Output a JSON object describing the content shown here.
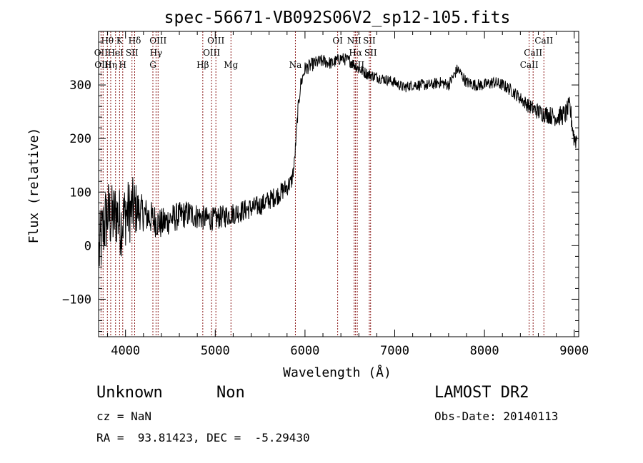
{
  "chart_data": {
    "type": "line",
    "title": "spec-56671-VB092S06V2_sp12-105.fits",
    "xlabel": "Wavelength (Å)",
    "ylabel": "Flux (relative)",
    "xlim": [
      3700,
      9050
    ],
    "ylim": [
      -170,
      400
    ],
    "xticks": [
      "4000",
      "5000",
      "6000",
      "7000",
      "8000",
      "9000"
    ],
    "yticks": [
      "−100",
      "0",
      "100",
      "200",
      "300"
    ],
    "grid": false,
    "line_color": "#000000",
    "marker_color": "#8b1a1a",
    "lines": [
      {
        "label": "Hθ",
        "x": 3798,
        "row": 1
      },
      {
        "label": "K",
        "x": 3934,
        "row": 1
      },
      {
        "label": "Hδ",
        "x": 4102,
        "row": 1
      },
      {
        "label": "OIII",
        "x": 4363,
        "row": 1
      },
      {
        "label": "OIII",
        "x": 5007,
        "row": 1
      },
      {
        "label": "OI",
        "x": 6364,
        "row": 1
      },
      {
        "label": "NII",
        "x": 6548,
        "row": 1
      },
      {
        "label": "SII",
        "x": 6717,
        "row": 1
      },
      {
        "label": "CaII",
        "x": 8662,
        "row": 1
      },
      {
        "label": "OII",
        "x": 3727,
        "row": 2
      },
      {
        "label": "HeI",
        "x": 3889,
        "row": 2
      },
      {
        "label": "SII",
        "x": 4072,
        "row": 2
      },
      {
        "label": "Hγ",
        "x": 4340,
        "row": 2
      },
      {
        "label": "OIII",
        "x": 4959,
        "row": 2
      },
      {
        "label": "Hα",
        "x": 6563,
        "row": 2
      },
      {
        "label": "SII",
        "x": 6731,
        "row": 2
      },
      {
        "label": "CaII",
        "x": 8542,
        "row": 2
      },
      {
        "label": "OIII",
        "x": 3750,
        "row": 3
      },
      {
        "label": "Hη",
        "x": 3835,
        "row": 3
      },
      {
        "label": "H",
        "x": 3969,
        "row": 3
      },
      {
        "label": "G",
        "x": 4305,
        "row": 3
      },
      {
        "label": "Hβ",
        "x": 4861,
        "row": 3
      },
      {
        "label": "Mg",
        "x": 5175,
        "row": 3
      },
      {
        "label": "Na",
        "x": 5893,
        "row": 3
      },
      {
        "label": "NII",
        "x": 6583,
        "row": 3
      },
      {
        "label": "CaII",
        "x": 8498,
        "row": 3
      }
    ],
    "spectrum_trend": {
      "x": [
        3700,
        3750,
        3800,
        3850,
        3900,
        3950,
        4000,
        4100,
        4200,
        4300,
        4400,
        4500,
        4600,
        4700,
        4800,
        4900,
        5000,
        5100,
        5200,
        5300,
        5400,
        5500,
        5600,
        5700,
        5800,
        5850,
        5880,
        5900,
        5920,
        5950,
        6000,
        6100,
        6200,
        6300,
        6400,
        6500,
        6600,
        6700,
        6800,
        6900,
        7000,
        7100,
        7200,
        7300,
        7400,
        7500,
        7600,
        7700,
        7800,
        7900,
        8000,
        8100,
        8200,
        8300,
        8400,
        8500,
        8600,
        8700,
        8800,
        8900,
        8950,
        9000
      ],
      "y": [
        -20,
        30,
        60,
        50,
        60,
        40,
        60,
        70,
        60,
        50,
        40,
        50,
        55,
        60,
        55,
        50,
        50,
        55,
        60,
        65,
        70,
        75,
        85,
        95,
        110,
        120,
        150,
        200,
        250,
        300,
        330,
        340,
        345,
        340,
        350,
        345,
        330,
        320,
        315,
        310,
        305,
        295,
        300,
        300,
        300,
        305,
        300,
        330,
        305,
        300,
        300,
        305,
        300,
        290,
        275,
        260,
        250,
        245,
        240,
        245,
        260,
        200
      ]
    },
    "spectrum_noise": {
      "x": [
        3700,
        4100,
        4150,
        4500,
        5000,
        5800,
        5900,
        6300,
        7000,
        8400,
        8600,
        8800,
        9050
      ],
      "amp": [
        70,
        60,
        35,
        28,
        22,
        18,
        14,
        12,
        10,
        12,
        16,
        18,
        22
      ]
    }
  },
  "footer": {
    "class_label": "Unknown",
    "subclass_label": "Non",
    "redshift": "cz = NaN",
    "coords": "RA =  93.81423, DEC =  -5.29430",
    "survey": "LAMOST DR2",
    "obs_date": "Obs-Date: 20140113"
  }
}
